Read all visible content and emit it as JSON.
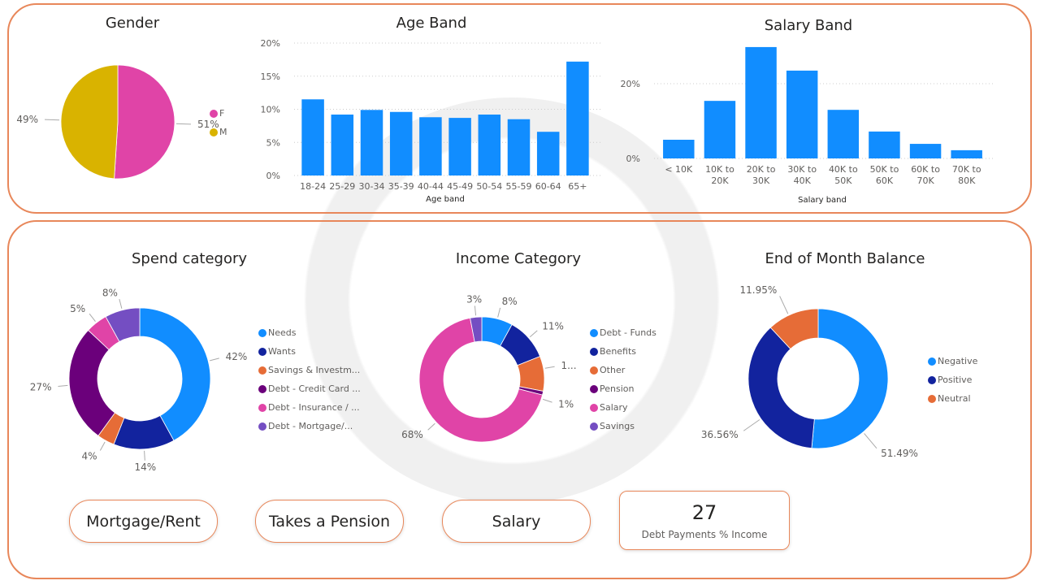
{
  "chart_data": [
    {
      "id": "gender",
      "type": "pie",
      "title": "Gender",
      "categories": [
        "F",
        "M"
      ],
      "values": [
        51,
        49
      ],
      "labels": [
        "51%",
        "49%"
      ],
      "colors": [
        "#E044A7",
        "#D9B300"
      ],
      "legend": "right"
    },
    {
      "id": "age",
      "type": "bar",
      "title": "Age Band",
      "xlabel": "Age band",
      "ylabel": "",
      "ylim": [
        0,
        20
      ],
      "yticks": [
        "0%",
        "5%",
        "10%",
        "15%",
        "20%"
      ],
      "categories": [
        "18-24",
        "25-29",
        "30-34",
        "35-39",
        "40-44",
        "45-49",
        "50-54",
        "55-59",
        "60-64",
        "65+"
      ],
      "values": [
        11.5,
        9.2,
        9.9,
        9.6,
        8.8,
        8.7,
        9.2,
        8.5,
        6.6,
        17.2
      ],
      "color": "#118DFF"
    },
    {
      "id": "salary",
      "type": "bar",
      "title": "Salary Band",
      "xlabel": "Salary band",
      "ylabel": "",
      "yticks": [
        "0%",
        "20%"
      ],
      "ylim": [
        0,
        31
      ],
      "categories": [
        [
          "< 10K",
          ""
        ],
        [
          "10K to",
          "20K"
        ],
        [
          "20K to",
          "30K"
        ],
        [
          "30K to",
          "40K"
        ],
        [
          "40K to",
          "50K"
        ],
        [
          "50K to",
          "60K"
        ],
        [
          "60K to",
          "70K"
        ],
        [
          "70K to",
          "80K"
        ]
      ],
      "values": [
        5.0,
        15.4,
        29.8,
        23.5,
        13.0,
        7.2,
        3.9,
        2.2
      ],
      "color": "#118DFF"
    },
    {
      "id": "spend",
      "type": "pie",
      "title": "Spend category",
      "categories": [
        "Needs",
        "Wants",
        "Savings & Investm...",
        "Debt - Credit Card ...",
        "Debt - Insurance / ...",
        "Debt - Mortgage/..."
      ],
      "values": [
        42,
        14,
        4,
        27,
        5,
        8
      ],
      "labels": [
        "42%",
        "14%",
        "4%",
        "27%",
        "5%",
        "8%"
      ],
      "colors": [
        "#118DFF",
        "#12239E",
        "#E66C37",
        "#6B007B",
        "#E044A7",
        "#744EC2"
      ],
      "legend": "right"
    },
    {
      "id": "income",
      "type": "pie",
      "title": "Income Category",
      "categories": [
        "Debt - Funds",
        "Benefits",
        "Other",
        "Pension",
        "Salary",
        "Savings"
      ],
      "values": [
        8,
        11,
        9,
        1,
        68,
        3
      ],
      "labels": [
        "8%",
        "11%",
        "1...",
        "1%",
        "68%",
        "3%"
      ],
      "colors": [
        "#118DFF",
        "#12239E",
        "#E66C37",
        "#6B007B",
        "#E044A7",
        "#744EC2"
      ],
      "legend": "right"
    },
    {
      "id": "eom",
      "type": "pie",
      "title": "End of Month Balance",
      "categories": [
        "Negative",
        "Positive",
        "Neutral"
      ],
      "values": [
        51.49,
        36.56,
        11.95
      ],
      "labels": [
        "51.49%",
        "36.56%",
        "11.95%"
      ],
      "colors": [
        "#118DFF",
        "#12239E",
        "#E66C37"
      ],
      "legend": "right"
    }
  ],
  "buttons": {
    "mortgage": "Mortgage/Rent",
    "pension": "Takes a Pension",
    "salary": "Salary"
  },
  "card": {
    "value": "27",
    "caption": "Debt Payments % Income"
  }
}
